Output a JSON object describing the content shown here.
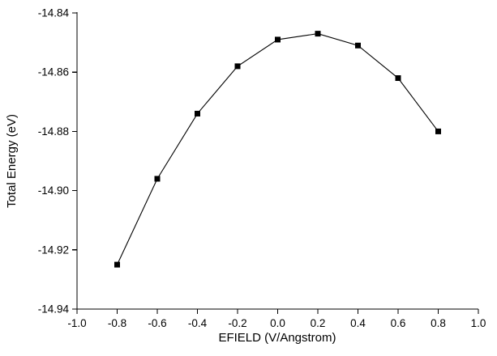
{
  "chart_data": {
    "type": "line",
    "subtype": "line-with-square-markers",
    "title": "",
    "xlabel": "EFIELD  (V/Angstrom)",
    "ylabel": "Total Energy (eV)",
    "x": [
      -0.8,
      -0.6,
      -0.4,
      -0.2,
      0.0,
      0.2,
      0.4,
      0.6,
      0.8
    ],
    "y": [
      -14.925,
      -14.896,
      -14.874,
      -14.858,
      -14.849,
      -14.847,
      -14.851,
      -14.862,
      -14.88
    ],
    "xlim": [
      -1.0,
      1.0
    ],
    "ylim": [
      -14.94,
      -14.84
    ],
    "x_ticks": [
      -1.0,
      -0.8,
      -0.6,
      -0.4,
      -0.2,
      0.0,
      0.2,
      0.4,
      0.6,
      0.8,
      1.0
    ],
    "y_ticks": [
      -14.94,
      -14.92,
      -14.9,
      -14.88,
      -14.86,
      -14.84
    ],
    "x_tick_labels": [
      "-1.0",
      "-0.8",
      "-0.6",
      "-0.4",
      "-0.2",
      "0.0",
      "0.2",
      "0.4",
      "0.6",
      "0.8",
      "1.0"
    ],
    "y_tick_labels": [
      "-14.94",
      "-14.92",
      "-14.90",
      "-14.88",
      "-14.86",
      "-14.84"
    ],
    "grid": false,
    "legend": false,
    "marker": "filled-square",
    "marker_size": 7,
    "line_color": "#000000",
    "marker_color": "#000000",
    "background_color": "#ffffff"
  }
}
